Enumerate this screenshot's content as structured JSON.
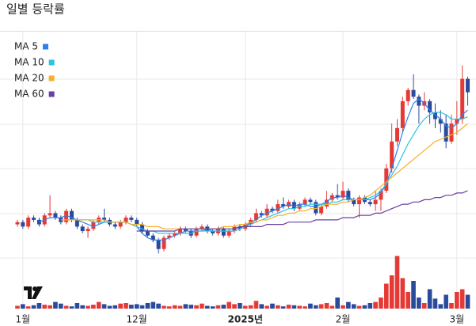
{
  "chart_data": {
    "type": "candlestick",
    "title": "일별 등락률",
    "categories": [
      null,
      "1월",
      null,
      null,
      null,
      null,
      null,
      null,
      null,
      null,
      null,
      null,
      null,
      null,
      null,
      null,
      null,
      null,
      null,
      null,
      null,
      null,
      "12월",
      null,
      null,
      null,
      null,
      null,
      null,
      null,
      null,
      null,
      null,
      null,
      null,
      null,
      null,
      null,
      null,
      null,
      null,
      null,
      "2025년",
      null,
      null,
      null,
      null,
      null,
      null,
      null,
      null,
      null,
      null,
      null,
      null,
      null,
      null,
      null,
      null,
      null,
      "2월",
      null,
      null,
      null,
      null,
      null,
      null,
      null,
      null,
      null,
      null,
      null,
      null,
      null,
      null,
      null,
      null,
      null,
      null,
      null,
      null,
      "3월",
      null,
      null
    ],
    "ohlc": [
      [
        15,
        17,
        14,
        16
      ],
      [
        16,
        17,
        13,
        14
      ],
      [
        14,
        19,
        13,
        18
      ],
      [
        18,
        19,
        16,
        17
      ],
      [
        17,
        18,
        14,
        15
      ],
      [
        15,
        20,
        14,
        19
      ],
      [
        19,
        28,
        18,
        20
      ],
      [
        20,
        21,
        17,
        18
      ],
      [
        18,
        19,
        15,
        16
      ],
      [
        16,
        22,
        15,
        21
      ],
      [
        21,
        22,
        16,
        17
      ],
      [
        17,
        18,
        13,
        14
      ],
      [
        14,
        15,
        11,
        12
      ],
      [
        12,
        14,
        9,
        13
      ],
      [
        13,
        17,
        12,
        16
      ],
      [
        16,
        19,
        15,
        18
      ],
      [
        18,
        22,
        16,
        17
      ],
      [
        17,
        18,
        14,
        15
      ],
      [
        15,
        16,
        13,
        14
      ],
      [
        14,
        17,
        13,
        16
      ],
      [
        16,
        19,
        15,
        18
      ],
      [
        18,
        19,
        16,
        17
      ],
      [
        17,
        18,
        14,
        15
      ],
      [
        15,
        16,
        11,
        12
      ],
      [
        12,
        13,
        9,
        10
      ],
      [
        10,
        11,
        7,
        8
      ],
      [
        8,
        9,
        2,
        4
      ],
      [
        4,
        10,
        3,
        9
      ],
      [
        9,
        11,
        8,
        10
      ],
      [
        10,
        12,
        9,
        11
      ],
      [
        11,
        14,
        10,
        13
      ],
      [
        13,
        14,
        11,
        12
      ],
      [
        12,
        13,
        9,
        10
      ],
      [
        10,
        14,
        9,
        13
      ],
      [
        13,
        15,
        12,
        14
      ],
      [
        14,
        15,
        11,
        12
      ],
      [
        12,
        13,
        10,
        11
      ],
      [
        11,
        14,
        10,
        13
      ],
      [
        13,
        14,
        9,
        10
      ],
      [
        10,
        13,
        9,
        12
      ],
      [
        12,
        15,
        11,
        14
      ],
      [
        14,
        15,
        12,
        13
      ],
      [
        13,
        16,
        12,
        15
      ],
      [
        15,
        18,
        14,
        17
      ],
      [
        17,
        22,
        16,
        20
      ],
      [
        20,
        21,
        18,
        19
      ],
      [
        19,
        24,
        18,
        22
      ],
      [
        22,
        23,
        20,
        21
      ],
      [
        21,
        26,
        20,
        24
      ],
      [
        24,
        27,
        22,
        23
      ],
      [
        23,
        26,
        22,
        25
      ],
      [
        25,
        26,
        21,
        22
      ],
      [
        22,
        25,
        21,
        24
      ],
      [
        24,
        27,
        23,
        26
      ],
      [
        26,
        27,
        24,
        25
      ],
      [
        25,
        26,
        19,
        20
      ],
      [
        20,
        24,
        19,
        23
      ],
      [
        23,
        30,
        22,
        26
      ],
      [
        26,
        29,
        25,
        28
      ],
      [
        28,
        33,
        26,
        27
      ],
      [
        27,
        34,
        26,
        30
      ],
      [
        30,
        31,
        25,
        26
      ],
      [
        26,
        27,
        23,
        24
      ],
      [
        24,
        28,
        18,
        27
      ],
      [
        27,
        28,
        24,
        25
      ],
      [
        25,
        26,
        23,
        24
      ],
      [
        24,
        30,
        21,
        26
      ],
      [
        26,
        31,
        21,
        30
      ],
      [
        30,
        42,
        29,
        40
      ],
      [
        40,
        60,
        38,
        52
      ],
      [
        52,
        62,
        50,
        58
      ],
      [
        58,
        72,
        56,
        70
      ],
      [
        70,
        76,
        68,
        75
      ],
      [
        75,
        82,
        71,
        72
      ],
      [
        72,
        73,
        60,
        68
      ],
      [
        68,
        74,
        66,
        70
      ],
      [
        70,
        71,
        60,
        65
      ],
      [
        65,
        69,
        58,
        62
      ],
      [
        62,
        66,
        56,
        60
      ],
      [
        60,
        64,
        49,
        52
      ],
      [
        52,
        64,
        51,
        60
      ],
      [
        60,
        70,
        55,
        62
      ],
      [
        62,
        86,
        60,
        80
      ],
      [
        80,
        81,
        68,
        74
      ]
    ],
    "up_color": "#e53935",
    "down_color": "#2a4a9c",
    "volume": [
      5,
      8,
      4,
      6,
      10,
      7,
      6,
      12,
      9,
      5,
      4,
      10,
      6,
      5,
      7,
      12,
      8,
      5,
      6,
      9,
      10,
      7,
      8,
      6,
      10,
      12,
      9,
      5,
      4,
      6,
      5,
      8,
      7,
      6,
      9,
      5,
      4,
      6,
      7,
      12,
      8,
      10,
      5,
      6,
      14,
      8,
      5,
      9,
      6,
      4,
      7,
      6,
      5,
      4,
      9,
      6,
      8,
      10,
      5,
      20,
      6,
      12,
      8,
      5,
      6,
      10,
      12,
      20,
      45,
      60,
      95,
      55,
      30,
      50,
      20,
      10,
      35,
      18,
      8,
      25,
      10,
      30,
      35,
      25
    ],
    "ylim": [
      0,
      100
    ],
    "volume_ylim": [
      0,
      100
    ],
    "series": [
      {
        "name": "MA 5",
        "color": "#2f80ed",
        "values": [
          null,
          null,
          null,
          null,
          16,
          17,
          18,
          18,
          18,
          19,
          18,
          17,
          16,
          15,
          14,
          15,
          16,
          16,
          16,
          16,
          16,
          15,
          14,
          11,
          9,
          8,
          8,
          8,
          9,
          10,
          11,
          12,
          12,
          12,
          12,
          13,
          12,
          12,
          12,
          12,
          12,
          13,
          14,
          16,
          17,
          19,
          20,
          21,
          22,
          23,
          24,
          23,
          24,
          24,
          23,
          23,
          24,
          25,
          27,
          27,
          28,
          27,
          26,
          26,
          26,
          26,
          27,
          29,
          33,
          40,
          48,
          56,
          63,
          69,
          71,
          69,
          66,
          64,
          62,
          59,
          58,
          60,
          64,
          66
        ]
      },
      {
        "name": "MA 10",
        "color": "#2ec4e0",
        "values": [
          null,
          null,
          null,
          null,
          null,
          null,
          null,
          null,
          null,
          17,
          17,
          17,
          17,
          17,
          16,
          16,
          16,
          16,
          16,
          16,
          16,
          15,
          14,
          13,
          12,
          12,
          11,
          11,
          11,
          11,
          11,
          11,
          11,
          12,
          12,
          12,
          12,
          12,
          12,
          12,
          12,
          13,
          14,
          15,
          16,
          17,
          18,
          19,
          20,
          21,
          22,
          22,
          23,
          23,
          24,
          24,
          24,
          24,
          25,
          25,
          26,
          26,
          26,
          26,
          26,
          27,
          28,
          30,
          33,
          37,
          41,
          46,
          51,
          55,
          59,
          62,
          64,
          65,
          65,
          64,
          62,
          62,
          62,
          63
        ]
      },
      {
        "name": "MA 20",
        "color": "#f5b12c",
        "values": [
          null,
          null,
          null,
          null,
          null,
          null,
          null,
          null,
          17,
          17,
          17,
          17,
          17,
          17,
          17,
          17,
          17,
          16,
          16,
          16,
          16,
          15,
          15,
          15,
          14,
          14,
          14,
          13,
          13,
          13,
          13,
          13,
          13,
          13,
          13,
          13,
          13,
          13,
          14,
          14,
          14,
          15,
          15,
          16,
          16,
          17,
          17,
          18,
          19,
          19,
          20,
          20,
          21,
          21,
          22,
          22,
          23,
          24,
          24,
          24,
          25,
          25,
          26,
          26,
          27,
          28,
          30,
          32,
          34,
          36,
          38,
          40,
          42,
          44,
          46,
          48,
          50,
          52,
          53,
          54,
          55,
          56,
          58,
          60
        ]
      },
      {
        "name": "MA 60",
        "color": "#6a3fa0",
        "values": [
          null,
          null,
          null,
          null,
          null,
          null,
          null,
          null,
          null,
          null,
          null,
          null,
          null,
          null,
          null,
          null,
          null,
          null,
          null,
          null,
          null,
          null,
          12,
          12,
          12,
          12,
          12,
          12,
          12,
          12,
          13,
          13,
          13,
          13,
          13,
          13,
          13,
          13,
          13,
          13,
          13,
          14,
          14,
          14,
          14,
          14,
          15,
          15,
          15,
          15,
          16,
          16,
          16,
          16,
          16,
          17,
          17,
          17,
          17,
          17,
          18,
          18,
          18,
          19,
          19,
          19,
          20,
          20,
          21,
          22,
          23,
          24,
          24,
          25,
          25,
          26,
          26,
          27,
          27,
          28,
          28,
          29,
          29,
          30
        ]
      }
    ]
  }
}
